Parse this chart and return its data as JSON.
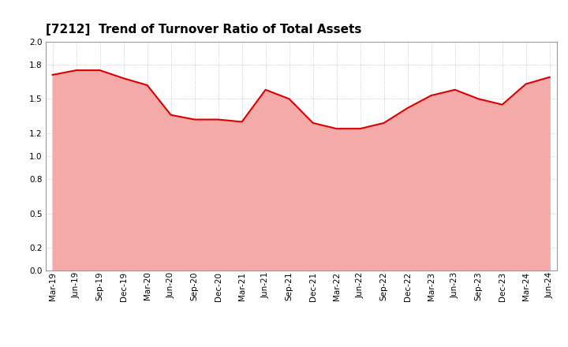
{
  "title": "[7212]  Trend of Turnover Ratio of Total Assets",
  "x_labels": [
    "Mar-19",
    "Jun-19",
    "Sep-19",
    "Dec-19",
    "Mar-20",
    "Jun-20",
    "Sep-20",
    "Dec-20",
    "Mar-21",
    "Jun-21",
    "Sep-21",
    "Dec-21",
    "Mar-22",
    "Jun-22",
    "Sep-22",
    "Dec-22",
    "Mar-23",
    "Jun-23",
    "Sep-23",
    "Dec-23",
    "Mar-24",
    "Jun-24"
  ],
  "y_values": [
    1.71,
    1.75,
    1.75,
    1.68,
    1.62,
    1.36,
    1.32,
    1.32,
    1.3,
    1.58,
    1.5,
    1.29,
    1.24,
    1.24,
    1.29,
    1.42,
    1.53,
    1.58,
    1.5,
    1.45,
    1.63,
    1.69
  ],
  "ylim": [
    0.0,
    2.0
  ],
  "yticks": [
    0.0,
    0.2,
    0.5,
    0.8,
    1.0,
    1.2,
    1.5,
    1.8,
    2.0
  ],
  "line_color": "#dd0000",
  "line_width": 1.5,
  "fill_color": "#f5aaaa",
  "bg_color": "#ffffff",
  "plot_bg_color": "#ffffff",
  "grid_color": "#bbbbbb",
  "title_fontsize": 11,
  "tick_fontsize": 7.5
}
